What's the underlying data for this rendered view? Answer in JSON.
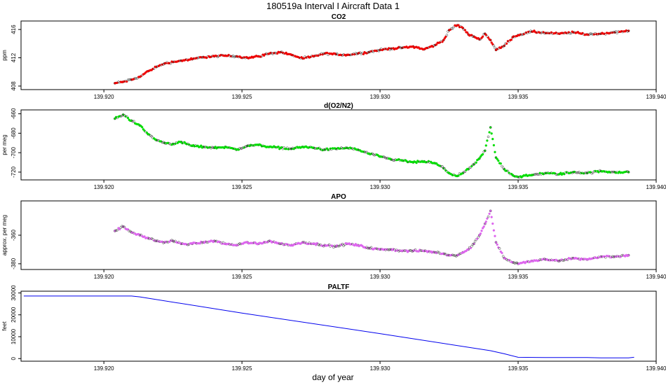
{
  "figure": {
    "title": "180519a   Interval I Aircraft Data 1",
    "xlabel": "day of year"
  },
  "chart_data": [
    {
      "type": "scatter",
      "title": "CO2",
      "ylabel": "ppm",
      "xlim": [
        139.917,
        139.94
      ],
      "ylim": [
        407.5,
        417.2
      ],
      "xticks": [
        139.92,
        139.925,
        139.93,
        139.935,
        139.94
      ],
      "xtick_labels": [
        "139.920",
        "139.925",
        "139.930",
        "139.935",
        "139.940"
      ],
      "yticks": [
        408,
        412,
        416
      ],
      "ytick_labels": [
        "408",
        "412",
        "416"
      ],
      "color": "#ee0000",
      "series": [
        {
          "x": [
            139.9204,
            139.9207,
            139.921,
            139.9213,
            139.9216,
            139.9219,
            139.9222,
            139.9225,
            139.9228,
            139.9232,
            139.9236,
            139.924,
            139.9244,
            139.9248,
            139.9252,
            139.9256,
            139.926,
            139.9264,
            139.9268,
            139.9272,
            139.9276,
            139.928,
            139.9284,
            139.9288,
            139.9292,
            139.9296,
            139.93,
            139.9304,
            139.9308,
            139.9312,
            139.9316,
            139.932,
            139.9323,
            139.9325,
            139.9328,
            139.933,
            139.9332,
            139.9334,
            139.9336,
            139.9338,
            139.934,
            139.9342,
            139.9345,
            139.9348,
            139.935,
            139.9355,
            139.936,
            139.9365,
            139.937,
            139.9375,
            139.938,
            139.9385,
            139.939
          ],
          "y": [
            408.4,
            408.6,
            408.9,
            409.3,
            410.1,
            410.7,
            411.2,
            411.4,
            411.6,
            411.8,
            412.1,
            412.2,
            412.3,
            412.2,
            412.0,
            412.2,
            412.6,
            412.8,
            412.4,
            411.9,
            412.2,
            412.6,
            412.5,
            412.4,
            412.6,
            412.8,
            413.1,
            413.3,
            413.4,
            413.6,
            413.2,
            413.8,
            414.5,
            415.9,
            416.6,
            416.2,
            415.3,
            415.0,
            414.6,
            415.4,
            414.5,
            413.1,
            413.7,
            414.9,
            415.2,
            415.7,
            415.5,
            415.4,
            415.6,
            415.3,
            415.4,
            415.6,
            415.8
          ]
        }
      ]
    },
    {
      "type": "scatter",
      "title": "d(O2/N2)",
      "ylabel": "per meg",
      "xlim": [
        139.917,
        139.94
      ],
      "ylim": [
        -728,
        -656
      ],
      "xticks": [
        139.92,
        139.925,
        139.93,
        139.935,
        139.94
      ],
      "xtick_labels": [
        "139.920",
        "139.925",
        "139.930",
        "139.935",
        "139.940"
      ],
      "yticks": [
        -660,
        -680,
        -700,
        -720
      ],
      "ytick_labels": [
        "-660",
        "-680",
        "-700",
        "-720"
      ],
      "color": "#00dd00",
      "series": [
        {
          "x": [
            139.9204,
            139.9207,
            139.921,
            139.9213,
            139.9216,
            139.9219,
            139.9222,
            139.9225,
            139.9228,
            139.9232,
            139.9236,
            139.924,
            139.9244,
            139.9248,
            139.9252,
            139.9256,
            139.926,
            139.9264,
            139.9268,
            139.9272,
            139.9276,
            139.928,
            139.9284,
            139.9288,
            139.9292,
            139.9296,
            139.93,
            139.9304,
            139.9308,
            139.9312,
            139.9316,
            139.932,
            139.9323,
            139.9325,
            139.9328,
            139.933,
            139.9332,
            139.9334,
            139.9336,
            139.9338,
            139.934,
            139.9342,
            139.9345,
            139.9348,
            139.935,
            139.9355,
            139.936,
            139.9365,
            139.937,
            139.9375,
            139.938,
            139.9385,
            139.939
          ],
          "y": [
            -665,
            -661,
            -667,
            -672,
            -681,
            -687,
            -690,
            -691,
            -689,
            -693,
            -694,
            -695,
            -694,
            -697,
            -693,
            -692,
            -694,
            -695,
            -696,
            -694,
            -695,
            -697,
            -696,
            -695,
            -697,
            -701,
            -704,
            -707,
            -708,
            -710,
            -709,
            -711,
            -716,
            -721,
            -724,
            -721,
            -717,
            -712,
            -706,
            -698,
            -674,
            -705,
            -717,
            -723,
            -725,
            -723,
            -721,
            -722,
            -720,
            -721,
            -719,
            -720,
            -720
          ]
        }
      ]
    },
    {
      "type": "scatter",
      "title": "APO",
      "ylabel": "approx. per meg",
      "xlim": [
        139.917,
        139.94
      ],
      "ylim": [
        -384,
        -336
      ],
      "xticks": [
        139.92,
        139.925,
        139.93,
        139.935,
        139.94
      ],
      "xtick_labels": [
        "139.920",
        "139.925",
        "139.930",
        "139.935",
        "139.940"
      ],
      "yticks": [
        -360,
        -380
      ],
      "ytick_labels": [
        "-360",
        "-380"
      ],
      "color": "#dd66ee",
      "series": [
        {
          "x": [
            139.9204,
            139.9207,
            139.921,
            139.9213,
            139.9216,
            139.9219,
            139.9222,
            139.9225,
            139.9228,
            139.9232,
            139.9236,
            139.924,
            139.9244,
            139.9248,
            139.9252,
            139.9256,
            139.926,
            139.9264,
            139.9268,
            139.9272,
            139.9276,
            139.928,
            139.9284,
            139.9288,
            139.9292,
            139.9296,
            139.93,
            139.9304,
            139.9308,
            139.9312,
            139.9316,
            139.932,
            139.9323,
            139.9325,
            139.9328,
            139.933,
            139.9332,
            139.9334,
            139.9336,
            139.9338,
            139.934,
            139.9342,
            139.9345,
            139.9348,
            139.935,
            139.9355,
            139.936,
            139.9365,
            139.937,
            139.9375,
            139.938,
            139.9385,
            139.939
          ],
          "y": [
            -357,
            -354,
            -358,
            -360,
            -362,
            -364,
            -365,
            -364,
            -366,
            -366,
            -365,
            -364,
            -366,
            -367,
            -365,
            -366,
            -364,
            -366,
            -367,
            -365,
            -366,
            -367,
            -368,
            -366,
            -367,
            -369,
            -370,
            -370,
            -371,
            -371,
            -371,
            -372,
            -373,
            -374,
            -374,
            -372,
            -370,
            -366,
            -360,
            -352,
            -343,
            -365,
            -376,
            -379,
            -380,
            -378,
            -377,
            -378,
            -376,
            -377,
            -375,
            -375,
            -374
          ]
        }
      ]
    },
    {
      "type": "line",
      "title": "PALTF",
      "ylabel": "feet",
      "xlim": [
        139.917,
        139.94
      ],
      "ylim": [
        -1200,
        30800
      ],
      "xticks": [
        139.92,
        139.925,
        139.93,
        139.935,
        139.94
      ],
      "xtick_labels": [
        "139.920",
        "139.925",
        "139.930",
        "139.935",
        "139.940"
      ],
      "yticks": [
        0,
        10000,
        20000,
        30000
      ],
      "ytick_labels": [
        "0",
        "10000",
        "20000",
        "30000"
      ],
      "color": "#0000ee",
      "series": [
        {
          "x": [
            139.9171,
            139.92,
            139.921,
            139.9213,
            139.925,
            139.93,
            139.934,
            139.9345,
            139.935,
            139.936,
            139.937,
            139.9375,
            139.938,
            139.9385,
            139.939,
            139.9392
          ],
          "y": [
            28600,
            28600,
            28600,
            28200,
            20800,
            11400,
            3600,
            2200,
            600,
            500,
            500,
            500,
            300,
            300,
            300,
            600
          ]
        }
      ]
    }
  ]
}
